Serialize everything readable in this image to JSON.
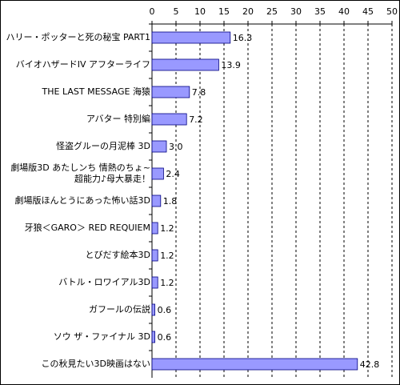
{
  "chart_data": {
    "type": "bar",
    "orientation": "horizontal",
    "categories": [
      "ハリー・ポッターと死の秘宝 PART1",
      "バイオハザードIV アフターライフ",
      "THE LAST MESSAGE 海猿",
      "アバター 特別編",
      "怪盗グルーの月泥棒 3D",
      "劇場版3D あたしンち 情熱のちょ~\n超能力♪母大暴走！",
      "劇場版ほんとうにあった怖い話3D",
      "牙狼＜GARO＞ RED REQUIEM",
      "とびだす絵本3D",
      "バトル・ロワイアル3D",
      "ガフールの伝説",
      "ソウ ザ・ファイナル 3D",
      "この秋見たい3D映画はない"
    ],
    "values": [
      16.3,
      13.9,
      7.8,
      7.2,
      3.0,
      2.4,
      1.8,
      1.2,
      1.2,
      1.2,
      0.6,
      0.6,
      42.8
    ],
    "value_labels": [
      "16.3",
      "13.9",
      "7.8",
      "7.2",
      "3.0",
      "2.4",
      "1.8",
      "1.2",
      "1.2",
      "1.2",
      "0.6",
      "0.6",
      "42.8"
    ],
    "color": "#9999ff",
    "xlim": [
      0,
      50
    ],
    "xticks": [
      0,
      5,
      10,
      15,
      20,
      25,
      30,
      35,
      40,
      45,
      50
    ],
    "grid": true
  }
}
